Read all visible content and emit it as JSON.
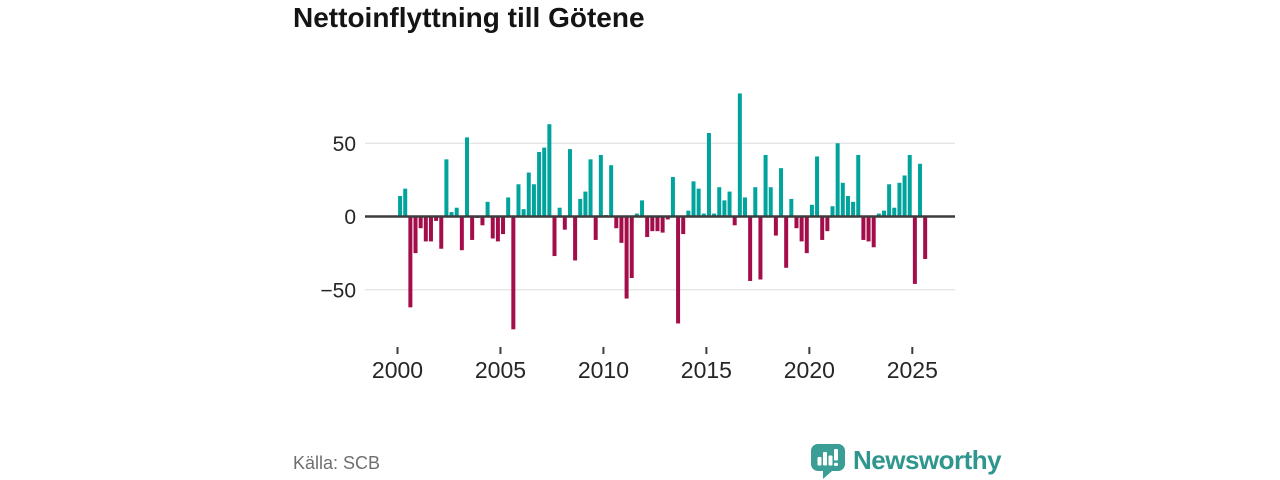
{
  "title": "Nettoinflyttning till Götene",
  "source": "Källa: SCB",
  "brand": {
    "name": "Newsworthy",
    "color": "#2f968e",
    "icon": "bar-chart-speech-bubble-icon"
  },
  "colors": {
    "positive": "#00a49c",
    "negative": "#a30d49",
    "axis": "#3d3d3d",
    "grid": "#e3e3e3",
    "tick_label": "#262626",
    "background": "#ffffff"
  },
  "chart_data": {
    "type": "bar",
    "title": "Nettoinflyttning till Götene",
    "xlabel": "",
    "ylabel": "",
    "frequency": "quarterly",
    "x_start_year": 2000,
    "x_start_quarter": 1,
    "x_end_year": 2025,
    "x_end_quarter": 3,
    "values": [
      14,
      19,
      -62,
      -25,
      -8,
      -17,
      -17,
      -3,
      -22,
      39,
      3,
      6,
      -23,
      54,
      -16,
      -1,
      -6,
      10,
      -15,
      -17,
      -12,
      13,
      -77,
      22,
      5,
      30,
      22,
      44,
      47,
      63,
      -27,
      6,
      -9,
      46,
      -30,
      12,
      17,
      39,
      -16,
      42,
      1,
      35,
      -8,
      -18,
      -56,
      -42,
      2,
      11,
      -14,
      -10,
      -10,
      -11,
      -2,
      27,
      -73,
      -12,
      4,
      24,
      19,
      2,
      57,
      2,
      20,
      11,
      17,
      -6,
      84,
      13,
      -44,
      20,
      -43,
      42,
      20,
      -13,
      33,
      -35,
      12,
      -8,
      -17,
      -25,
      8,
      41,
      -16,
      -10,
      7,
      50,
      23,
      14,
      10,
      42,
      -16,
      -17,
      -21,
      2,
      4,
      22,
      6,
      23,
      28,
      42,
      -46,
      36,
      -29
    ],
    "ylim": [
      -85,
      90
    ],
    "yticks": [
      50,
      0,
      -50
    ],
    "ytick_labels": [
      "50",
      "0",
      "−50"
    ],
    "xticks": [
      2000,
      2005,
      2010,
      2015,
      2020,
      2025
    ],
    "xtick_labels": [
      "2000",
      "2005",
      "2010",
      "2015",
      "2020",
      "2025"
    ],
    "grid": "horizontal",
    "legend": "none",
    "bar_color_positive": "#00a49c",
    "bar_color_negative": "#a30d49"
  }
}
